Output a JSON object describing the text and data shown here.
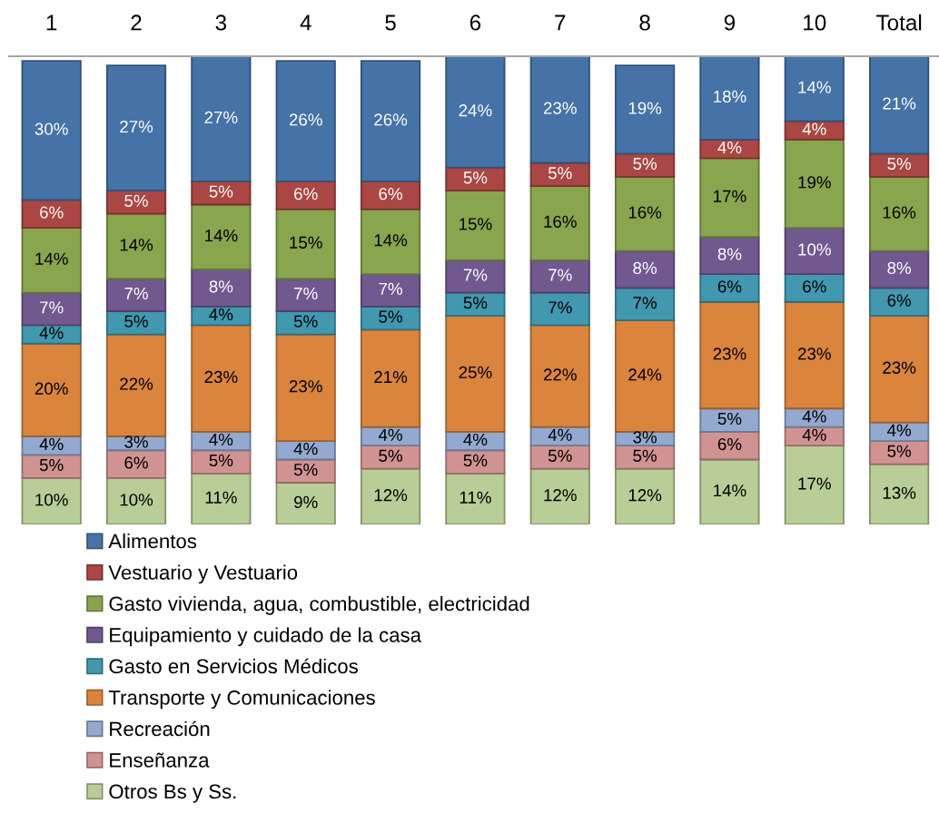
{
  "chart_data": {
    "type": "bar",
    "stacked": true,
    "ylim": [
      0,
      101
    ],
    "tick_labels": "x",
    "legend": "bottom",
    "categories": [
      "1",
      "2",
      "3",
      "4",
      "5",
      "6",
      "7",
      "8",
      "9",
      "10",
      "Total"
    ],
    "series": [
      {
        "name": "Otros Bs y Ss.",
        "color": "#b9cd96",
        "values": [
          10,
          10,
          11,
          9,
          12,
          11,
          12,
          12,
          14,
          17,
          13
        ],
        "value_labels": [
          "10%",
          "10%",
          "11%",
          "9%",
          "12%",
          "11%",
          "12%",
          "12%",
          "14%",
          "17%",
          "13%"
        ]
      },
      {
        "name": "Enseñanza",
        "color": "#d19392",
        "values": [
          5,
          6,
          5,
          5,
          5,
          5,
          5,
          5,
          6,
          4,
          5
        ],
        "value_labels": [
          "5%",
          "6%",
          "5%",
          "5%",
          "5%",
          "5%",
          "5%",
          "5%",
          "6%",
          "4%",
          "5%"
        ]
      },
      {
        "name": "Recreación",
        "color": "#93a9cf",
        "values": [
          4,
          3,
          4,
          4,
          4,
          4,
          4,
          3,
          5,
          4,
          4
        ],
        "value_labels": [
          "4%",
          "3%",
          "4%",
          "4%",
          "4%",
          "4%",
          "4%",
          "3%",
          "5%",
          "4%",
          "4%"
        ]
      },
      {
        "name": "Transporte y Comunicaciones",
        "color": "#db843d",
        "values": [
          20,
          22,
          23,
          23,
          21,
          25,
          22,
          24,
          23,
          23,
          23
        ],
        "value_labels": [
          "20%",
          "22%",
          "23%",
          "23%",
          "21%",
          "25%",
          "22%",
          "24%",
          "23%",
          "23%",
          "23%"
        ]
      },
      {
        "name": "Gasto en Servicios Médicos",
        "color": "#4198af",
        "values": [
          4,
          5,
          4,
          5,
          5,
          5,
          7,
          7,
          6,
          6,
          6
        ],
        "value_labels": [
          "4%",
          "5%",
          "4%",
          "5%",
          "5%",
          "5%",
          "7%",
          "7%",
          "6%",
          "6%",
          "6%"
        ]
      },
      {
        "name": "Equipamiento y cuidado de la casa",
        "color": "#71588f",
        "values": [
          7,
          7,
          8,
          7,
          7,
          7,
          7,
          8,
          8,
          10,
          8
        ],
        "value_labels": [
          "7%",
          "7%",
          "8%",
          "7%",
          "7%",
          "7%",
          "7%",
          "8%",
          "8%",
          "10%",
          "8%"
        ]
      },
      {
        "name": "Gasto vivienda, agua, combustible, electricidad",
        "color": "#89a54e",
        "values": [
          14,
          14,
          14,
          15,
          14,
          15,
          16,
          16,
          17,
          19,
          16
        ],
        "value_labels": [
          "14%",
          "14%",
          "14%",
          "15%",
          "14%",
          "15%",
          "16%",
          "16%",
          "17%",
          "19%",
          "16%"
        ]
      },
      {
        "name": "Vestuario y Vestuario",
        "color": "#aa4643",
        "values": [
          6,
          5,
          5,
          6,
          6,
          5,
          5,
          5,
          4,
          4,
          5
        ],
        "value_labels": [
          "6%",
          "5%",
          "5%",
          "6%",
          "6%",
          "5%",
          "5%",
          "5%",
          "4%",
          "4%",
          "5%"
        ]
      },
      {
        "name": "Alimentos",
        "color": "#4572a7",
        "values": [
          30,
          27,
          27,
          26,
          26,
          24,
          23,
          19,
          18,
          14,
          21
        ],
        "value_labels": [
          "30%",
          "27%",
          "27%",
          "26%",
          "26%",
          "24%",
          "23%",
          "19%",
          "18%",
          "14%",
          "21%"
        ]
      }
    ]
  }
}
